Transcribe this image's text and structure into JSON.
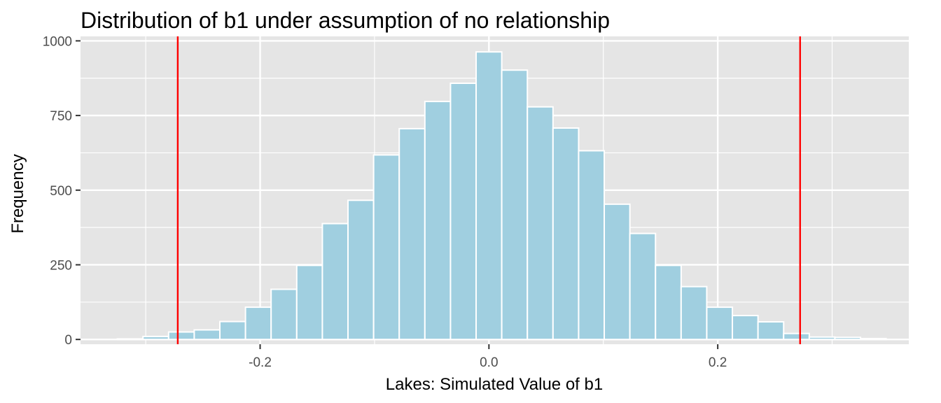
{
  "chart_data": {
    "type": "bar",
    "title": "Distribution of b1 under assumption of no relationship",
    "xlabel": "Lakes: Simulated Value of b1",
    "ylabel": "Frequency",
    "xlim": [
      -0.357,
      0.367
    ],
    "ylim": [
      -16,
      1015
    ],
    "x_ticks": [
      {
        "value": -0.2,
        "label": "-0.2"
      },
      {
        "value": 0.0,
        "label": "0.0"
      },
      {
        "value": 0.2,
        "label": "0.2"
      }
    ],
    "y_ticks": [
      {
        "value": 0,
        "label": "0"
      },
      {
        "value": 250,
        "label": "250"
      },
      {
        "value": 500,
        "label": "500"
      },
      {
        "value": 750,
        "label": "750"
      },
      {
        "value": 1000,
        "label": "1000"
      }
    ],
    "bin_width": 0.0224,
    "bins": [
      {
        "x": -0.3136,
        "count": 2
      },
      {
        "x": -0.2912,
        "count": 10
      },
      {
        "x": -0.2688,
        "count": 25
      },
      {
        "x": -0.2464,
        "count": 32
      },
      {
        "x": -0.224,
        "count": 60
      },
      {
        "x": -0.2016,
        "count": 108
      },
      {
        "x": -0.1792,
        "count": 168
      },
      {
        "x": -0.1568,
        "count": 248
      },
      {
        "x": -0.1344,
        "count": 388
      },
      {
        "x": -0.112,
        "count": 466
      },
      {
        "x": -0.0896,
        "count": 618
      },
      {
        "x": -0.0672,
        "count": 706
      },
      {
        "x": -0.0448,
        "count": 797
      },
      {
        "x": -0.0224,
        "count": 858
      },
      {
        "x": 0.0,
        "count": 963
      },
      {
        "x": 0.0224,
        "count": 902
      },
      {
        "x": 0.0448,
        "count": 779
      },
      {
        "x": 0.0672,
        "count": 708
      },
      {
        "x": 0.0896,
        "count": 632
      },
      {
        "x": 0.112,
        "count": 453
      },
      {
        "x": 0.1344,
        "count": 355
      },
      {
        "x": 0.1568,
        "count": 248
      },
      {
        "x": 0.1792,
        "count": 177
      },
      {
        "x": 0.2016,
        "count": 108
      },
      {
        "x": 0.224,
        "count": 80
      },
      {
        "x": 0.2464,
        "count": 59
      },
      {
        "x": 0.2688,
        "count": 20
      },
      {
        "x": 0.2912,
        "count": 8
      },
      {
        "x": 0.3136,
        "count": 7
      },
      {
        "x": 0.336,
        "count": 3
      }
    ],
    "vlines": [
      -0.272,
      0.272
    ],
    "colors": {
      "panel_background": "#e5e5e5",
      "grid": "#ffffff",
      "bar_fill": "#a0cfe0",
      "bar_outline": "#ffffff",
      "vline": "#ff0000"
    },
    "grid": true,
    "legend": "none"
  }
}
